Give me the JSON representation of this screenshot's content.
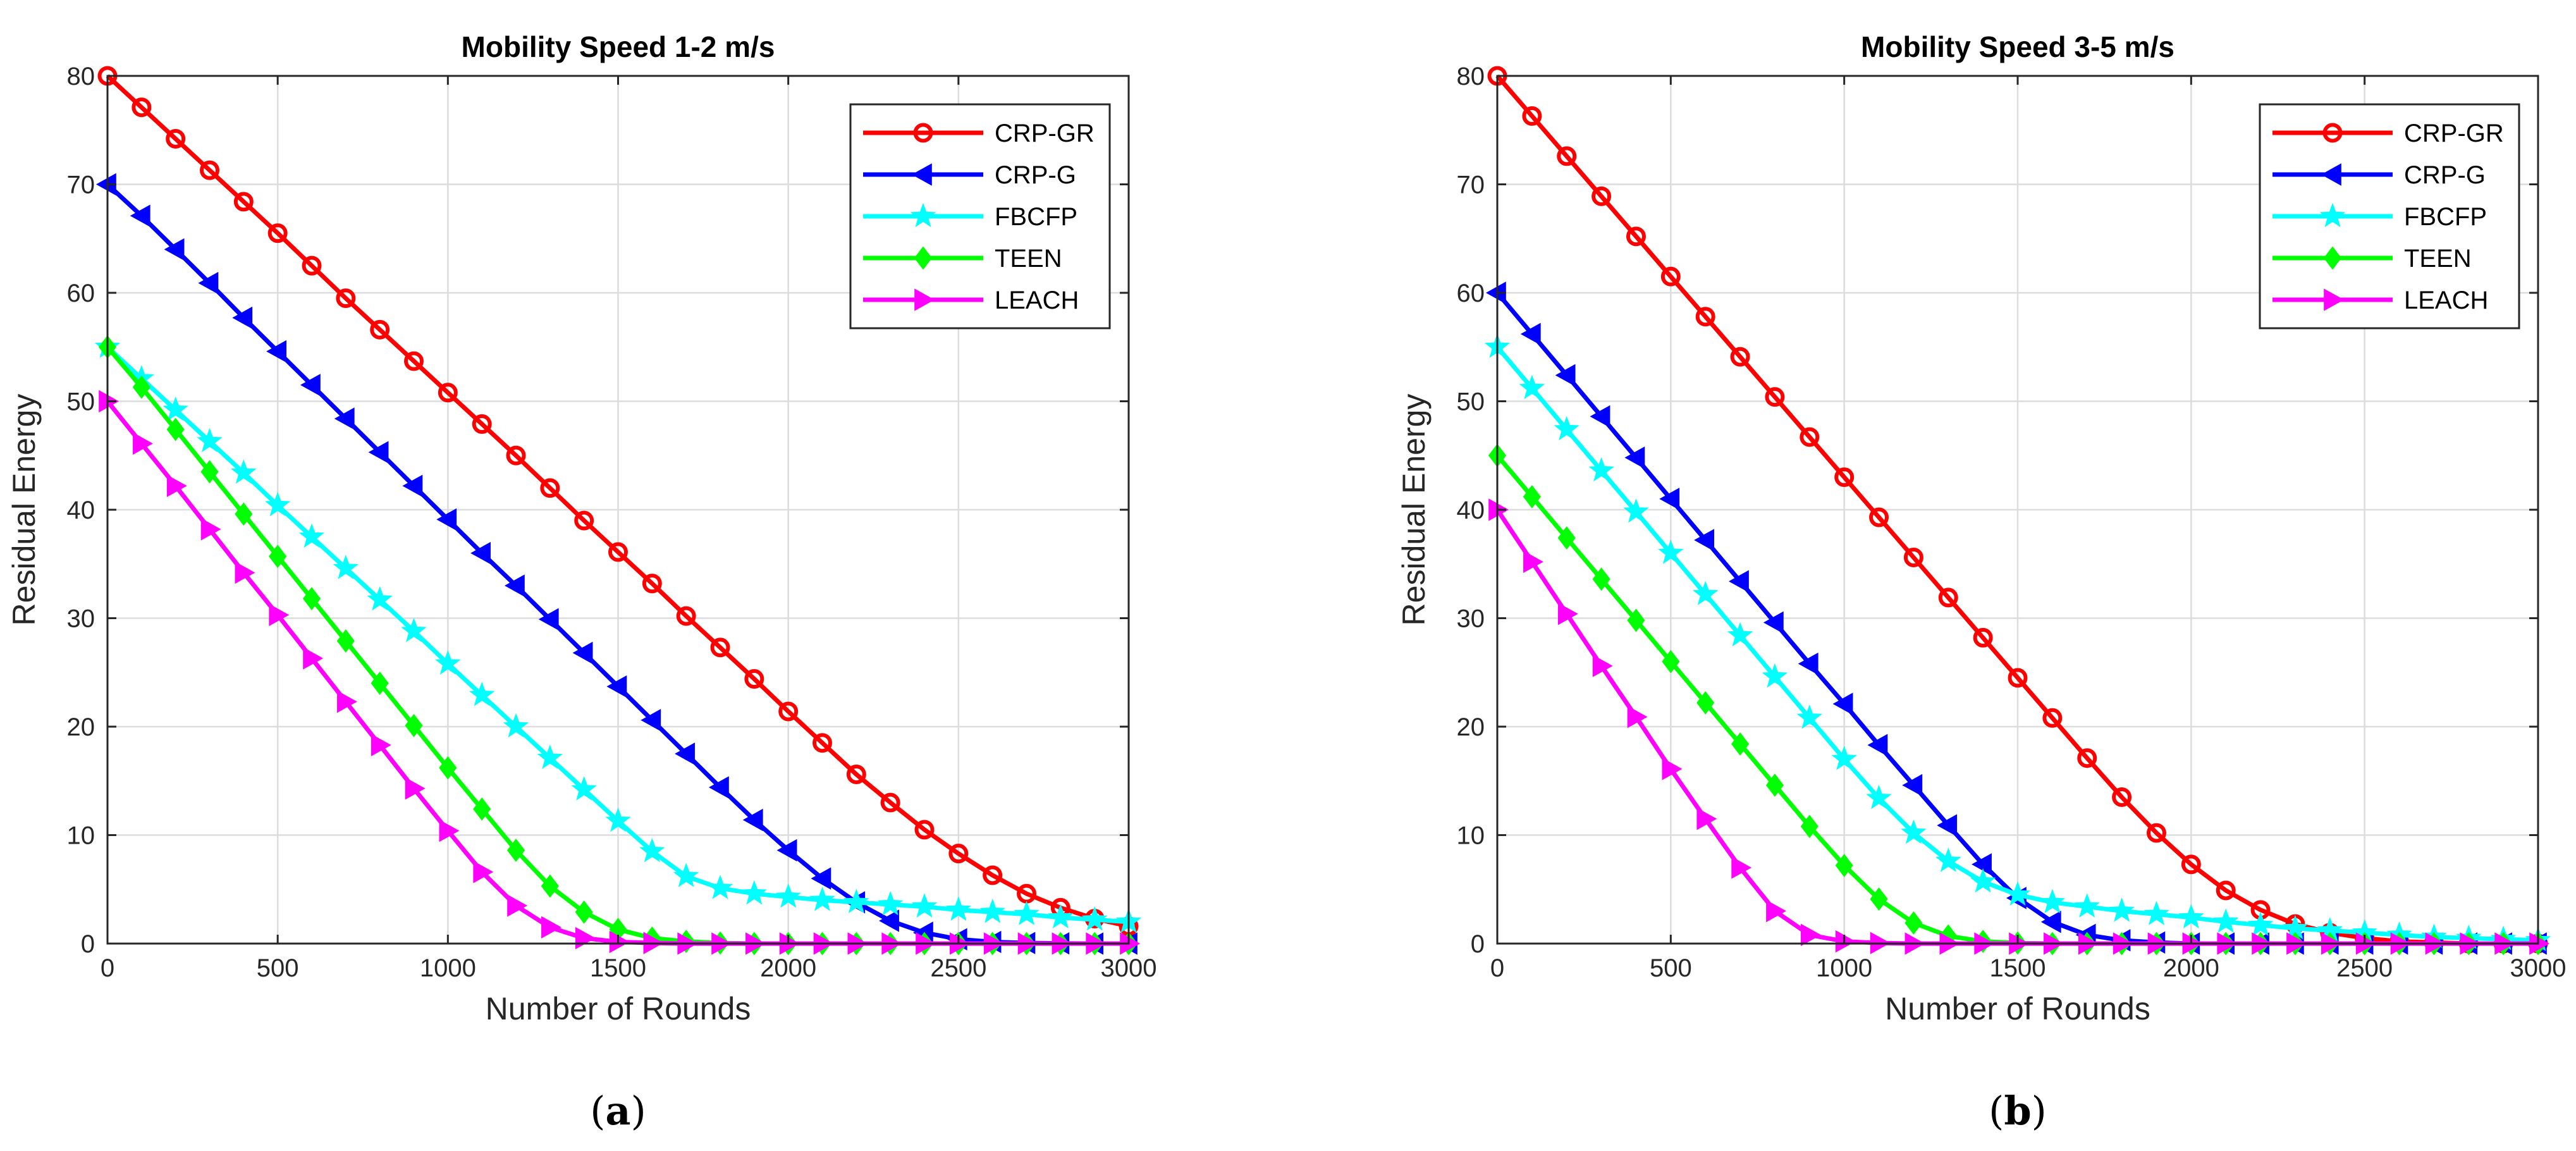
{
  "chart_data": [
    {
      "type": "line",
      "title": "Mobility Speed 1-2 m/s",
      "xlabel": "Number of Rounds",
      "ylabel": "Residual Energy",
      "xlim": [
        0,
        3000
      ],
      "ylim": [
        0,
        80
      ],
      "xticks": [
        0,
        500,
        1000,
        1500,
        2000,
        2500,
        3000
      ],
      "yticks": [
        0,
        10,
        20,
        30,
        40,
        50,
        60,
        70,
        80
      ],
      "grid": true,
      "legend_position": "top-right",
      "caption": {
        "open": "(",
        "letter": "a",
        "close": ")"
      },
      "x": [
        0,
        100,
        200,
        300,
        400,
        500,
        600,
        700,
        800,
        900,
        1000,
        1100,
        1200,
        1300,
        1400,
        1500,
        1600,
        1700,
        1800,
        1900,
        2000,
        2100,
        2200,
        2300,
        2400,
        2500,
        2600,
        2700,
        2800,
        2900,
        3000
      ],
      "series": [
        {
          "name": "CRP-GR",
          "color": "#ff0000",
          "marker": "circle",
          "values": [
            80,
            77.1,
            74.2,
            71.3,
            68.4,
            65.5,
            62.5,
            59.5,
            56.6,
            53.7,
            50.8,
            47.9,
            45,
            42,
            39,
            36.1,
            33.2,
            30.2,
            27.3,
            24.4,
            21.4,
            18.5,
            15.6,
            13,
            10.5,
            8.3,
            6.3,
            4.6,
            3.3,
            2.3,
            1.6
          ]
        },
        {
          "name": "CRP-G",
          "color": "#0000ff",
          "marker": "triangle-left",
          "values": [
            70,
            67.1,
            64,
            60.9,
            57.7,
            54.6,
            51.5,
            48.4,
            45.3,
            42.2,
            39.1,
            36,
            33,
            29.9,
            26.8,
            23.7,
            20.6,
            17.5,
            14.4,
            11.4,
            8.6,
            6,
            3.8,
            2.1,
            1,
            0.4,
            0.15,
            0.05,
            0.02,
            0,
            0
          ]
        },
        {
          "name": "FBCFP",
          "color": "#00ffff",
          "marker": "star",
          "values": [
            55,
            52.1,
            49.2,
            46.3,
            43.4,
            40.4,
            37.5,
            34.6,
            31.7,
            28.8,
            25.8,
            22.9,
            20,
            17.1,
            14.2,
            11.3,
            8.5,
            6.2,
            5.1,
            4.6,
            4.3,
            4.0,
            3.8,
            3.6,
            3.4,
            3.1,
            2.9,
            2.7,
            2.4,
            2.2,
            2.0
          ]
        },
        {
          "name": "TEEN",
          "color": "#00ff00",
          "marker": "diamond",
          "values": [
            55,
            51.3,
            47.4,
            43.5,
            39.6,
            35.7,
            31.8,
            27.9,
            24,
            20.1,
            16.2,
            12.4,
            8.6,
            5.3,
            2.9,
            1.3,
            0.5,
            0.2,
            0.05,
            0,
            0,
            0,
            0,
            0,
            0,
            0,
            0,
            0,
            0,
            0,
            0
          ]
        },
        {
          "name": "LEACH",
          "color": "#ff00ff",
          "marker": "triangle-right",
          "values": [
            50,
            46.1,
            42.2,
            38.2,
            34.2,
            30.3,
            26.3,
            22.3,
            18.3,
            14.3,
            10.4,
            6.6,
            3.5,
            1.5,
            0.5,
            0.15,
            0.05,
            0,
            0,
            0,
            0,
            0,
            0,
            0,
            0,
            0,
            0,
            0,
            0,
            0,
            0
          ]
        }
      ]
    },
    {
      "type": "line",
      "title": "Mobility Speed 3-5 m/s",
      "xlabel": "Number of Rounds",
      "ylabel": "Residual Energy",
      "xlim": [
        0,
        3000
      ],
      "ylim": [
        0,
        80
      ],
      "xticks": [
        0,
        500,
        1000,
        1500,
        2000,
        2500,
        3000
      ],
      "yticks": [
        0,
        10,
        20,
        30,
        40,
        50,
        60,
        70,
        80
      ],
      "grid": true,
      "legend_position": "top-right",
      "caption": {
        "open": "(",
        "letter": "b",
        "close": ")"
      },
      "x": [
        0,
        100,
        200,
        300,
        400,
        500,
        600,
        700,
        800,
        900,
        1000,
        1100,
        1200,
        1300,
        1400,
        1500,
        1600,
        1700,
        1800,
        1900,
        2000,
        2100,
        2200,
        2300,
        2400,
        2500,
        2600,
        2700,
        2800,
        2900,
        3000
      ],
      "series": [
        {
          "name": "CRP-GR",
          "color": "#ff0000",
          "marker": "circle",
          "values": [
            80,
            76.3,
            72.6,
            68.9,
            65.2,
            61.5,
            57.8,
            54.1,
            50.4,
            46.7,
            43,
            39.3,
            35.6,
            31.9,
            28.2,
            24.5,
            20.8,
            17.1,
            13.5,
            10.2,
            7.3,
            4.9,
            3.1,
            1.8,
            1,
            0.5,
            0.2,
            0.1,
            0,
            0,
            0
          ]
        },
        {
          "name": "CRP-G",
          "color": "#0000ff",
          "marker": "triangle-left",
          "values": [
            60,
            56.2,
            52.4,
            48.6,
            44.8,
            41,
            37.2,
            33.4,
            29.6,
            25.8,
            22.1,
            18.3,
            14.6,
            10.9,
            7.3,
            4.2,
            2,
            0.8,
            0.3,
            0.1,
            0,
            0,
            0,
            0,
            0,
            0,
            0,
            0,
            0,
            0,
            0
          ]
        },
        {
          "name": "FBCFP",
          "color": "#00ffff",
          "marker": "star",
          "values": [
            55,
            51.2,
            47.4,
            43.6,
            39.8,
            36,
            32.2,
            28.4,
            24.6,
            20.8,
            17,
            13.4,
            10.2,
            7.6,
            5.7,
            4.5,
            3.8,
            3.4,
            3.0,
            2.7,
            2.4,
            2.0,
            1.7,
            1.4,
            1.2,
            1.0,
            0.8,
            0.6,
            0.5,
            0.4,
            0.3
          ]
        },
        {
          "name": "TEEN",
          "color": "#00ff00",
          "marker": "diamond",
          "values": [
            45,
            41.2,
            37.4,
            33.6,
            29.8,
            26,
            22.2,
            18.4,
            14.6,
            10.8,
            7.2,
            4.1,
            1.9,
            0.7,
            0.2,
            0.05,
            0,
            0,
            0,
            0,
            0,
            0,
            0,
            0,
            0,
            0,
            0,
            0,
            0,
            0,
            0
          ]
        },
        {
          "name": "LEACH",
          "color": "#ff00ff",
          "marker": "triangle-right",
          "values": [
            40,
            35.2,
            30.4,
            25.6,
            20.9,
            16.1,
            11.5,
            7,
            3,
            0.8,
            0.2,
            0.05,
            0,
            0,
            0,
            0,
            0,
            0,
            0,
            0,
            0,
            0,
            0,
            0,
            0,
            0,
            0,
            0,
            0,
            0,
            0
          ]
        }
      ]
    }
  ]
}
